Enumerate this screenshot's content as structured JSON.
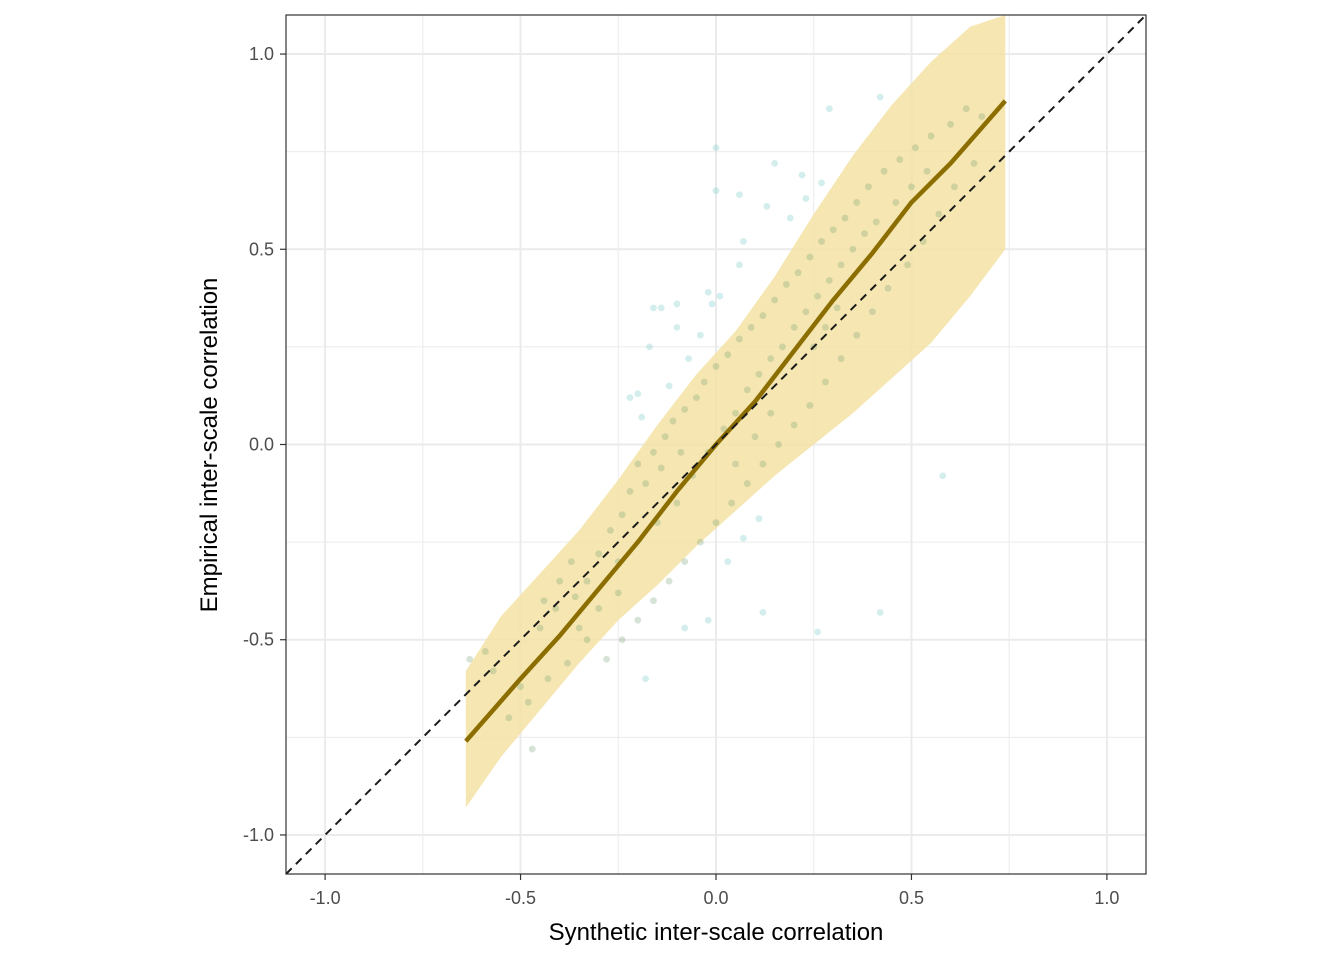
{
  "chart_data": {
    "type": "scatter",
    "title": "",
    "xlabel": "Synthetic inter-scale correlation",
    "ylabel": "Empirical inter-scale correlation",
    "xlim": [
      -1.1,
      1.1
    ],
    "ylim": [
      -1.1,
      1.1
    ],
    "x_ticks": [
      -1.0,
      -0.5,
      0.0,
      0.5,
      1.0
    ],
    "y_ticks": [
      -1.0,
      -0.5,
      0.0,
      0.5,
      1.0
    ],
    "x_tick_labels": [
      "-1.0",
      "-0.5",
      "0.0",
      "0.5",
      "1.0"
    ],
    "y_tick_labels": [
      "-1.0",
      "-0.5",
      "0.0",
      "0.5",
      "1.0"
    ],
    "grid": true,
    "legend": "none",
    "reference_line": {
      "style": "dashed",
      "color": "#1a1a1a",
      "from": [
        -1.1,
        -1.1
      ],
      "to": [
        1.1,
        1.1
      ]
    },
    "colors": {
      "points": "#6fc7c7",
      "points_dense": "#6a9a6a",
      "band": "#f3e2a4",
      "fit_line": "#8b6d00",
      "grid": "#ebebeb"
    },
    "fit_line": {
      "x": [
        -0.64,
        -0.5,
        -0.4,
        -0.3,
        -0.2,
        -0.1,
        0.0,
        0.1,
        0.2,
        0.3,
        0.4,
        0.5,
        0.6,
        0.74
      ],
      "y": [
        -0.76,
        -0.6,
        -0.49,
        -0.37,
        -0.25,
        -0.12,
        0.0,
        0.11,
        0.24,
        0.37,
        0.49,
        0.62,
        0.72,
        0.88
      ]
    },
    "band": {
      "x": [
        -0.64,
        -0.55,
        -0.45,
        -0.35,
        -0.25,
        -0.15,
        -0.05,
        0.05,
        0.15,
        0.25,
        0.35,
        0.45,
        0.55,
        0.65,
        0.74
      ],
      "lower": [
        -0.93,
        -0.8,
        -0.68,
        -0.56,
        -0.45,
        -0.36,
        -0.26,
        -0.17,
        -0.08,
        0.0,
        0.08,
        0.17,
        0.26,
        0.38,
        0.5
      ],
      "upper": [
        -0.58,
        -0.44,
        -0.33,
        -0.22,
        -0.09,
        0.05,
        0.18,
        0.29,
        0.43,
        0.59,
        0.74,
        0.87,
        0.98,
        1.07,
        1.1
      ]
    },
    "points": [
      {
        "x": 0.0,
        "y": 0.76
      },
      {
        "x": 0.29,
        "y": 0.86
      },
      {
        "x": 0.42,
        "y": 0.89
      },
      {
        "x": 0.15,
        "y": 0.72
      },
      {
        "x": 0.22,
        "y": 0.69
      },
      {
        "x": 0.0,
        "y": 0.65
      },
      {
        "x": 0.06,
        "y": 0.64
      },
      {
        "x": 0.13,
        "y": 0.61
      },
      {
        "x": 0.07,
        "y": 0.52
      },
      {
        "x": 0.06,
        "y": 0.46
      },
      {
        "x": -0.02,
        "y": 0.39
      },
      {
        "x": 0.01,
        "y": 0.38
      },
      {
        "x": -0.01,
        "y": 0.36
      },
      {
        "x": -0.1,
        "y": 0.36
      },
      {
        "x": -0.16,
        "y": 0.35
      },
      {
        "x": -0.14,
        "y": 0.35
      },
      {
        "x": -0.1,
        "y": 0.3
      },
      {
        "x": -0.17,
        "y": 0.25
      },
      {
        "x": -0.2,
        "y": 0.13
      },
      {
        "x": -0.22,
        "y": 0.12
      },
      {
        "x": -0.19,
        "y": 0.07
      },
      {
        "x": 0.58,
        "y": -0.08
      },
      {
        "x": 0.26,
        "y": -0.48
      },
      {
        "x": 0.42,
        "y": -0.43
      },
      {
        "x": -0.08,
        "y": -0.47
      },
      {
        "x": 0.12,
        "y": -0.43
      },
      {
        "x": -0.02,
        "y": -0.45
      },
      {
        "x": -0.18,
        "y": -0.6
      },
      {
        "x": -0.47,
        "y": -0.78
      },
      {
        "x": -0.63,
        "y": -0.55
      },
      {
        "x": -0.59,
        "y": -0.53
      },
      {
        "x": -0.57,
        "y": -0.58
      },
      {
        "x": -0.5,
        "y": -0.62
      },
      {
        "x": -0.45,
        "y": -0.47
      },
      {
        "x": -0.41,
        "y": -0.42
      },
      {
        "x": -0.36,
        "y": -0.39
      },
      {
        "x": -0.33,
        "y": -0.35
      },
      {
        "x": -0.3,
        "y": -0.28
      },
      {
        "x": -0.25,
        "y": -0.3
      },
      {
        "x": -0.27,
        "y": -0.22
      },
      {
        "x": -0.24,
        "y": -0.18
      },
      {
        "x": -0.22,
        "y": -0.12
      },
      {
        "x": -0.2,
        "y": -0.05
      },
      {
        "x": -0.16,
        "y": -0.02
      },
      {
        "x": -0.13,
        "y": 0.02
      },
      {
        "x": -0.11,
        "y": 0.06
      },
      {
        "x": -0.08,
        "y": 0.09
      },
      {
        "x": -0.05,
        "y": 0.12
      },
      {
        "x": -0.03,
        "y": 0.16
      },
      {
        "x": 0.0,
        "y": 0.2
      },
      {
        "x": 0.03,
        "y": 0.23
      },
      {
        "x": 0.06,
        "y": 0.27
      },
      {
        "x": 0.09,
        "y": 0.3
      },
      {
        "x": 0.12,
        "y": 0.33
      },
      {
        "x": 0.15,
        "y": 0.37
      },
      {
        "x": 0.18,
        "y": 0.41
      },
      {
        "x": 0.21,
        "y": 0.44
      },
      {
        "x": 0.24,
        "y": 0.48
      },
      {
        "x": 0.27,
        "y": 0.52
      },
      {
        "x": 0.3,
        "y": 0.55
      },
      {
        "x": 0.33,
        "y": 0.58
      },
      {
        "x": 0.36,
        "y": 0.62
      },
      {
        "x": 0.39,
        "y": 0.66
      },
      {
        "x": 0.43,
        "y": 0.7
      },
      {
        "x": 0.47,
        "y": 0.73
      },
      {
        "x": 0.51,
        "y": 0.76
      },
      {
        "x": 0.55,
        "y": 0.79
      },
      {
        "x": 0.6,
        "y": 0.82
      },
      {
        "x": 0.64,
        "y": 0.86
      },
      {
        "x": 0.68,
        "y": 0.84
      },
      {
        "x": 0.66,
        "y": 0.72
      },
      {
        "x": 0.61,
        "y": 0.66
      },
      {
        "x": 0.57,
        "y": 0.59
      },
      {
        "x": 0.53,
        "y": 0.52
      },
      {
        "x": 0.49,
        "y": 0.46
      },
      {
        "x": 0.44,
        "y": 0.4
      },
      {
        "x": 0.4,
        "y": 0.34
      },
      {
        "x": 0.36,
        "y": 0.28
      },
      {
        "x": 0.32,
        "y": 0.22
      },
      {
        "x": 0.28,
        "y": 0.16
      },
      {
        "x": 0.24,
        "y": 0.1
      },
      {
        "x": 0.2,
        "y": 0.05
      },
      {
        "x": 0.16,
        "y": 0.0
      },
      {
        "x": 0.12,
        "y": -0.05
      },
      {
        "x": 0.08,
        "y": -0.1
      },
      {
        "x": 0.04,
        "y": -0.15
      },
      {
        "x": 0.0,
        "y": -0.2
      },
      {
        "x": -0.04,
        "y": -0.25
      },
      {
        "x": -0.08,
        "y": -0.3
      },
      {
        "x": -0.12,
        "y": -0.35
      },
      {
        "x": -0.16,
        "y": -0.4
      },
      {
        "x": -0.2,
        "y": -0.45
      },
      {
        "x": -0.24,
        "y": -0.5
      },
      {
        "x": -0.28,
        "y": -0.55
      },
      {
        "x": -0.33,
        "y": -0.5
      },
      {
        "x": -0.38,
        "y": -0.56
      },
      {
        "x": -0.43,
        "y": -0.6
      },
      {
        "x": -0.48,
        "y": -0.66
      },
      {
        "x": -0.53,
        "y": -0.7
      },
      {
        "x": -0.15,
        "y": -0.2
      },
      {
        "x": -0.1,
        "y": -0.15
      },
      {
        "x": -0.06,
        "y": -0.08
      },
      {
        "x": -0.02,
        "y": -0.02
      },
      {
        "x": 0.02,
        "y": 0.04
      },
      {
        "x": 0.05,
        "y": 0.08
      },
      {
        "x": 0.08,
        "y": 0.14
      },
      {
        "x": 0.11,
        "y": 0.18
      },
      {
        "x": 0.14,
        "y": 0.22
      },
      {
        "x": 0.17,
        "y": 0.25
      },
      {
        "x": 0.2,
        "y": 0.3
      },
      {
        "x": 0.23,
        "y": 0.34
      },
      {
        "x": 0.26,
        "y": 0.38
      },
      {
        "x": 0.29,
        "y": 0.42
      },
      {
        "x": 0.32,
        "y": 0.46
      },
      {
        "x": 0.35,
        "y": 0.5
      },
      {
        "x": 0.38,
        "y": 0.54
      },
      {
        "x": 0.41,
        "y": 0.57
      },
      {
        "x": -0.07,
        "y": 0.22
      },
      {
        "x": -0.04,
        "y": 0.28
      },
      {
        "x": -0.12,
        "y": 0.15
      },
      {
        "x": 0.05,
        "y": -0.05
      },
      {
        "x": 0.1,
        "y": 0.02
      },
      {
        "x": 0.14,
        "y": 0.08
      },
      {
        "x": -0.25,
        "y": -0.38
      },
      {
        "x": -0.3,
        "y": -0.42
      },
      {
        "x": -0.35,
        "y": -0.47
      },
      {
        "x": 0.03,
        "y": -0.3
      },
      {
        "x": 0.07,
        "y": -0.24
      },
      {
        "x": 0.11,
        "y": -0.19
      },
      {
        "x": 0.25,
        "y": 0.25
      },
      {
        "x": 0.28,
        "y": 0.3
      },
      {
        "x": 0.31,
        "y": 0.35
      },
      {
        "x": -0.18,
        "y": -0.1
      },
      {
        "x": -0.14,
        "y": -0.06
      },
      {
        "x": -0.09,
        "y": -0.02
      },
      {
        "x": 0.19,
        "y": 0.58
      },
      {
        "x": 0.23,
        "y": 0.63
      },
      {
        "x": 0.27,
        "y": 0.67
      },
      {
        "x": 0.46,
        "y": 0.62
      },
      {
        "x": 0.5,
        "y": 0.66
      },
      {
        "x": 0.54,
        "y": 0.7
      },
      {
        "x": -0.4,
        "y": -0.35
      },
      {
        "x": -0.44,
        "y": -0.4
      },
      {
        "x": -0.37,
        "y": -0.3
      }
    ]
  }
}
